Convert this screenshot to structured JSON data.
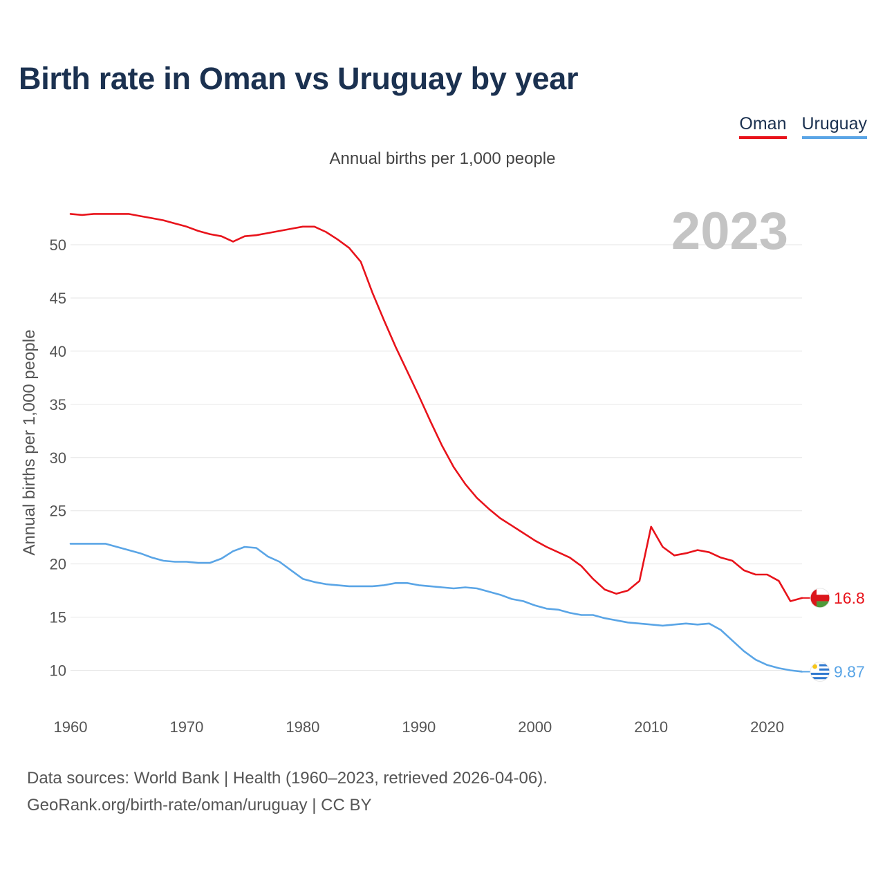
{
  "colors": {
    "oman": "#e8131b",
    "uruguay": "#5aa5e6",
    "title": "#1b3150",
    "grid": "#e6e6e6",
    "axis_text": "#555555",
    "year_watermark": "#c4c4c4"
  },
  "legend": {
    "items": [
      {
        "label": "Oman"
      },
      {
        "label": "Uruguay"
      }
    ]
  },
  "footer": {
    "line1": "Data sources: World Bank | Health (1960–2023, retrieved 2026-04-06).",
    "line2": "GeoRank.org/birth-rate/oman/uruguay | CC BY"
  },
  "chart_data": {
    "type": "line",
    "title": "Birth rate in Oman vs Uruguay by year",
    "subtitle": "Annual births per 1,000 people",
    "ylabel": "Annual births per 1,000 people",
    "xlabel": "",
    "current_year_label": "2023",
    "xlim": [
      1960,
      2023
    ],
    "ylim": [
      7,
      53.5
    ],
    "x_ticks": [
      1960,
      1970,
      1980,
      1990,
      2000,
      2010,
      2020
    ],
    "y_ticks": [
      10,
      15,
      20,
      25,
      30,
      35,
      40,
      45,
      50
    ],
    "grid": true,
    "x": [
      1960,
      1961,
      1962,
      1963,
      1964,
      1965,
      1966,
      1967,
      1968,
      1969,
      1970,
      1971,
      1972,
      1973,
      1974,
      1975,
      1976,
      1977,
      1978,
      1979,
      1980,
      1981,
      1982,
      1983,
      1984,
      1985,
      1986,
      1987,
      1988,
      1989,
      1990,
      1991,
      1992,
      1993,
      1994,
      1995,
      1996,
      1997,
      1998,
      1999,
      2000,
      2001,
      2002,
      2003,
      2004,
      2005,
      2006,
      2007,
      2008,
      2009,
      2010,
      2011,
      2012,
      2013,
      2014,
      2015,
      2016,
      2017,
      2018,
      2019,
      2020,
      2021,
      2022,
      2023
    ],
    "series": [
      {
        "name": "Oman",
        "end_label": "16.8",
        "values": [
          52.9,
          52.8,
          52.9,
          52.9,
          52.9,
          52.9,
          52.7,
          52.5,
          52.3,
          52.0,
          51.7,
          51.3,
          51.0,
          50.8,
          50.3,
          50.8,
          50.9,
          51.1,
          51.3,
          51.5,
          51.7,
          51.7,
          51.2,
          50.5,
          49.7,
          48.4,
          45.5,
          42.9,
          40.4,
          38.1,
          35.8,
          33.4,
          31.1,
          29.1,
          27.5,
          26.2,
          25.2,
          24.3,
          23.6,
          22.9,
          22.2,
          21.6,
          21.1,
          20.6,
          19.8,
          18.6,
          17.6,
          17.2,
          17.5,
          18.4,
          23.5,
          21.6,
          20.8,
          21.0,
          21.3,
          21.1,
          20.6,
          20.3,
          19.4,
          19.0,
          19.0,
          18.4,
          16.5,
          16.8
        ]
      },
      {
        "name": "Uruguay",
        "end_label": "9.87",
        "values": [
          21.9,
          21.9,
          21.9,
          21.9,
          21.6,
          21.3,
          21.0,
          20.6,
          20.3,
          20.2,
          20.2,
          20.1,
          20.1,
          20.5,
          21.2,
          21.6,
          21.5,
          20.7,
          20.2,
          19.4,
          18.6,
          18.3,
          18.1,
          18.0,
          17.9,
          17.9,
          17.9,
          18.0,
          18.2,
          18.2,
          18.0,
          17.9,
          17.8,
          17.7,
          17.8,
          17.7,
          17.4,
          17.1,
          16.7,
          16.5,
          16.1,
          15.8,
          15.7,
          15.4,
          15.2,
          15.2,
          14.9,
          14.7,
          14.5,
          14.4,
          14.3,
          14.2,
          14.3,
          14.4,
          14.3,
          14.4,
          13.8,
          12.8,
          11.8,
          11.0,
          10.5,
          10.2,
          10.0,
          9.87
        ]
      }
    ]
  }
}
